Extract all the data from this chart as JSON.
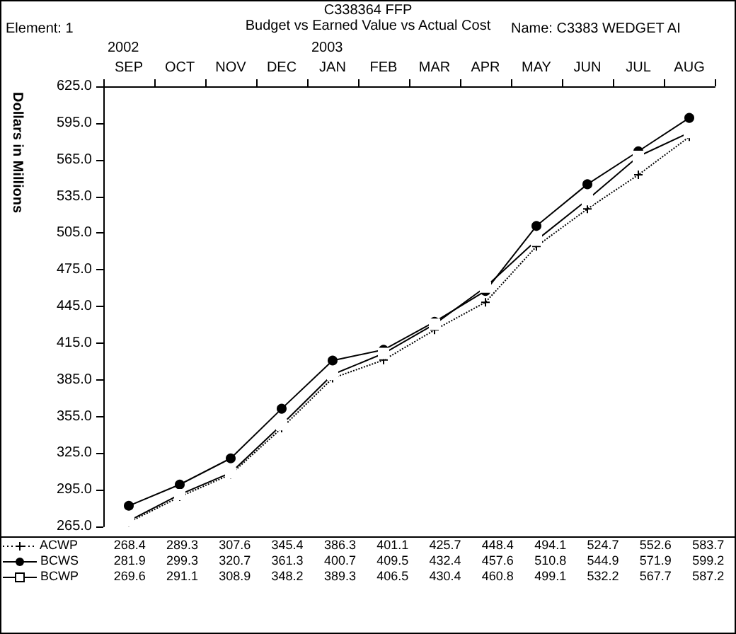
{
  "chart_data": {
    "type": "line",
    "title": "C338364 FFP",
    "subtitle": "Budget vs Earned Value vs Actual Cost",
    "annotations": [
      "Element: 1",
      "Name: C3383 WEDGET AI",
      "2002",
      "2003"
    ],
    "ylabel": "Dollars in Millions",
    "categories": [
      "SEP",
      "OCT",
      "NOV",
      "DEC",
      "JAN",
      "FEB",
      "MAR",
      "APR",
      "MAY",
      "JUN",
      "JUL",
      "AUG"
    ],
    "series": [
      {
        "name": "ACWP",
        "color": "#000000",
        "marker": "cross",
        "line_style": "dotted",
        "values": [
          268.4,
          289.3,
          307.6,
          345.4,
          386.3,
          401.1,
          425.7,
          448.4,
          494.1,
          524.7,
          552.6,
          583.7
        ]
      },
      {
        "name": "BCWS",
        "color": "#000000",
        "marker": "circle",
        "line_style": "solid",
        "values": [
          281.9,
          299.3,
          320.7,
          361.3,
          400.7,
          409.5,
          432.4,
          457.6,
          510.8,
          544.9,
          571.9,
          599.2
        ]
      },
      {
        "name": "BCWP",
        "color": "#000000",
        "marker": "square",
        "line_style": "solid",
        "values": [
          269.6,
          291.1,
          308.9,
          348.2,
          389.3,
          406.5,
          430.4,
          460.8,
          499.1,
          532.2,
          567.7,
          587.2
        ]
      }
    ],
    "ylim": [
      265,
      625
    ],
    "yticks": [
      {
        "value": 265,
        "label": "265.0"
      },
      {
        "value": 295,
        "label": "295.0"
      },
      {
        "value": 325,
        "label": "325.0"
      },
      {
        "value": 355,
        "label": "355.0"
      },
      {
        "value": 385,
        "label": "385.0"
      },
      {
        "value": 415,
        "label": "415.0"
      },
      {
        "value": 445,
        "label": "445.0"
      },
      {
        "value": 475,
        "label": "475.0"
      },
      {
        "value": 505,
        "label": "505.0"
      },
      {
        "value": 535,
        "label": "535.0"
      },
      {
        "value": 565,
        "label": "565.0"
      },
      {
        "value": 595,
        "label": "595.0"
      },
      {
        "value": 625,
        "label": "625.0"
      }
    ],
    "grid": false,
    "legend": "bottom",
    "data_labels": true
  }
}
